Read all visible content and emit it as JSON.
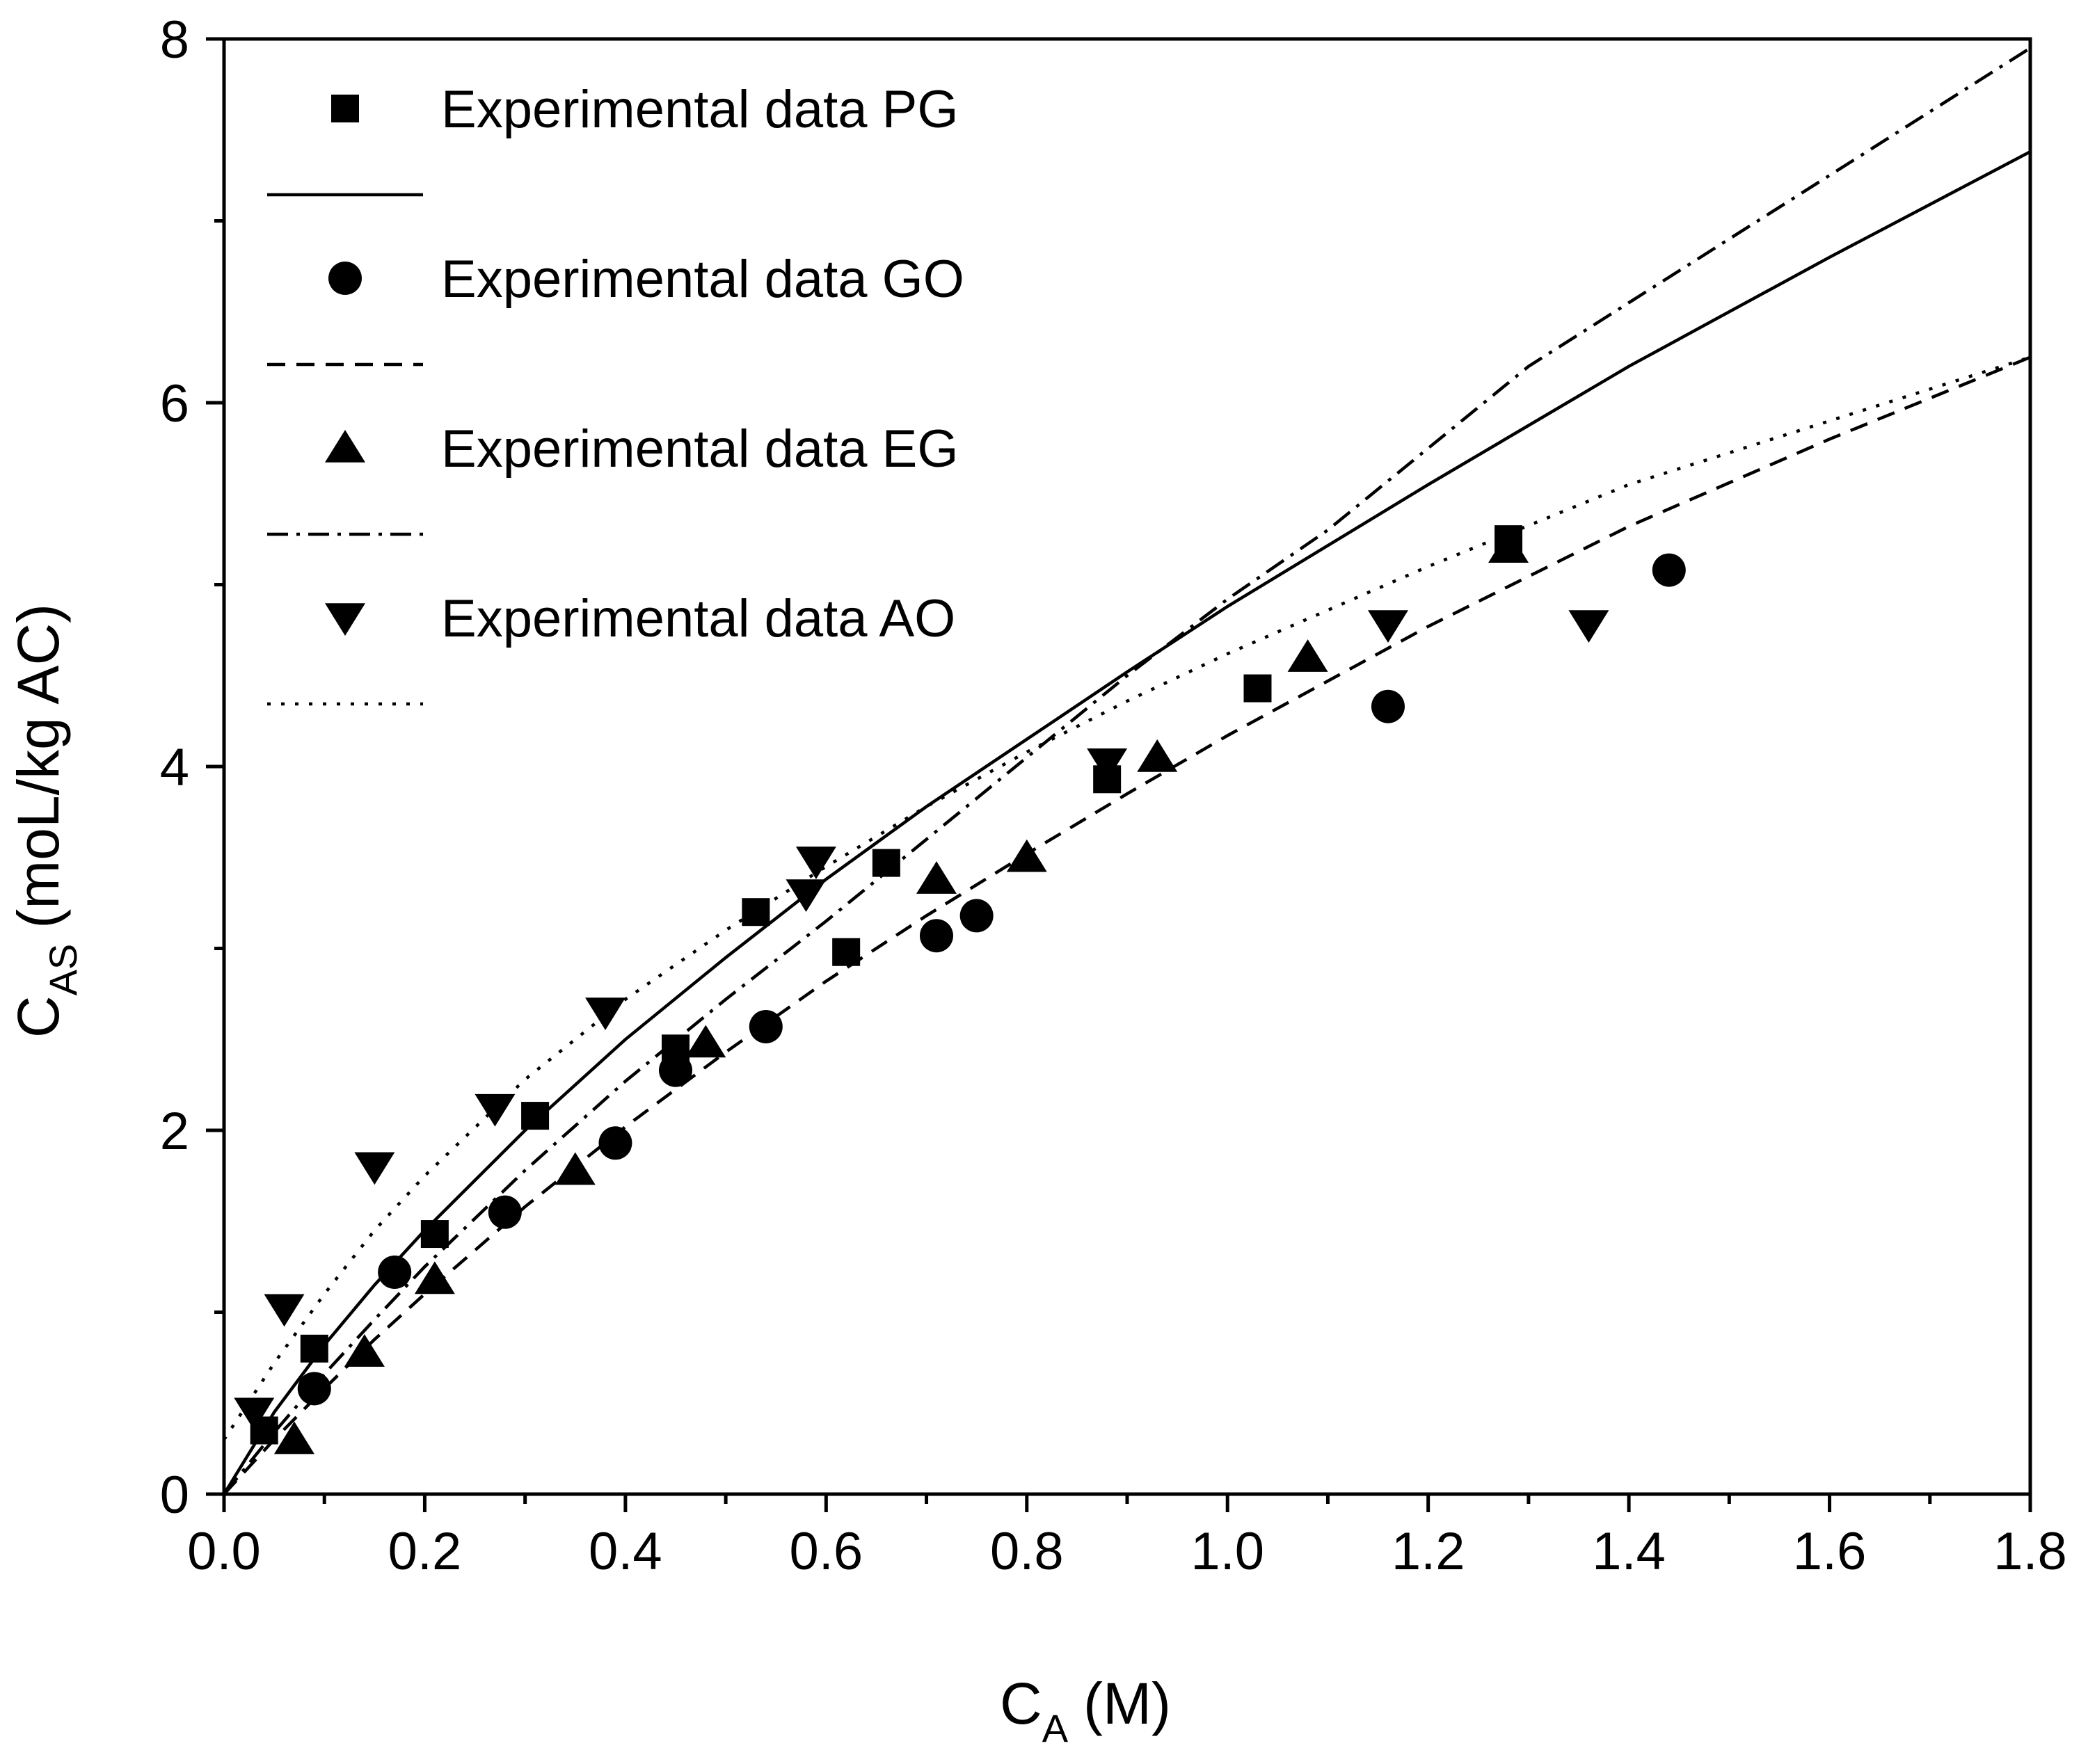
{
  "chart_data": {
    "type": "scatter",
    "title": "",
    "xlabel": {
      "main": "C",
      "sub": "A",
      "unit": "(M)"
    },
    "ylabel": {
      "main": "C",
      "sub": "AS",
      "unit": "(moL/kg AC)"
    },
    "xlim": [
      0.0,
      1.8
    ],
    "ylim": [
      0,
      8
    ],
    "xticks": [
      0.0,
      0.2,
      0.4,
      0.6,
      0.8,
      1.0,
      1.2,
      1.4,
      1.6,
      1.8
    ],
    "xtick_labels": [
      "0.0",
      "0.2",
      "0.4",
      "0.6",
      "0.8",
      "1.0",
      "1.2",
      "1.4",
      "1.6",
      "1.8"
    ],
    "yticks": [
      0,
      2,
      4,
      6,
      8
    ],
    "ytick_labels": [
      "0",
      "2",
      "4",
      "6",
      "8"
    ],
    "grid": false,
    "legend_position": "top-left",
    "series": [
      {
        "name": "Experimental data PG",
        "marker": "square",
        "line_style": "solid",
        "points": [
          [
            0.04,
            0.35
          ],
          [
            0.09,
            0.8
          ],
          [
            0.21,
            1.43
          ],
          [
            0.31,
            2.08
          ],
          [
            0.45,
            2.45
          ],
          [
            0.53,
            3.2
          ],
          [
            0.62,
            2.98
          ],
          [
            0.66,
            3.47
          ],
          [
            0.88,
            3.93
          ],
          [
            1.03,
            4.43
          ],
          [
            1.28,
            5.25
          ]
        ],
        "fit_points": [
          [
            0.0,
            0.0
          ],
          [
            0.05,
            0.45
          ],
          [
            0.1,
            0.82
          ],
          [
            0.15,
            1.15
          ],
          [
            0.2,
            1.45
          ],
          [
            0.3,
            2.0
          ],
          [
            0.4,
            2.5
          ],
          [
            0.5,
            2.95
          ],
          [
            0.6,
            3.38
          ],
          [
            0.7,
            3.78
          ],
          [
            0.8,
            4.15
          ],
          [
            0.9,
            4.52
          ],
          [
            1.0,
            4.88
          ],
          [
            1.2,
            5.55
          ],
          [
            1.4,
            6.2
          ],
          [
            1.6,
            6.8
          ],
          [
            1.8,
            7.38
          ]
        ]
      },
      {
        "name": "Experimental data GO",
        "marker": "circle",
        "line_style": "dashed",
        "points": [
          [
            0.09,
            0.58
          ],
          [
            0.17,
            1.22
          ],
          [
            0.28,
            1.55
          ],
          [
            0.39,
            1.93
          ],
          [
            0.45,
            2.33
          ],
          [
            0.54,
            2.57
          ],
          [
            0.71,
            3.07
          ],
          [
            0.75,
            3.18
          ],
          [
            1.16,
            4.33
          ],
          [
            1.44,
            5.08
          ]
        ],
        "fit_points": [
          [
            0.0,
            0.0
          ],
          [
            0.05,
            0.3
          ],
          [
            0.1,
            0.58
          ],
          [
            0.15,
            0.85
          ],
          [
            0.2,
            1.1
          ],
          [
            0.3,
            1.58
          ],
          [
            0.4,
            2.02
          ],
          [
            0.5,
            2.43
          ],
          [
            0.6,
            2.82
          ],
          [
            0.7,
            3.18
          ],
          [
            0.8,
            3.52
          ],
          [
            0.9,
            3.85
          ],
          [
            1.0,
            4.17
          ],
          [
            1.2,
            4.77
          ],
          [
            1.4,
            5.32
          ],
          [
            1.6,
            5.8
          ],
          [
            1.8,
            6.25
          ]
        ]
      },
      {
        "name": "Experimental data EG",
        "marker": "triangle-up",
        "line_style": "dash-dot",
        "points": [
          [
            0.07,
            0.3
          ],
          [
            0.14,
            0.78
          ],
          [
            0.21,
            1.18
          ],
          [
            0.35,
            1.78
          ],
          [
            0.48,
            2.48
          ],
          [
            0.71,
            3.38
          ],
          [
            0.8,
            3.5
          ],
          [
            0.93,
            4.05
          ],
          [
            1.08,
            4.6
          ],
          [
            1.28,
            5.2
          ]
        ],
        "fit_points": [
          [
            0.0,
            0.0
          ],
          [
            0.05,
            0.34
          ],
          [
            0.1,
            0.66
          ],
          [
            0.15,
            0.96
          ],
          [
            0.2,
            1.25
          ],
          [
            0.3,
            1.78
          ],
          [
            0.4,
            2.27
          ],
          [
            0.5,
            2.72
          ],
          [
            0.6,
            3.15
          ],
          [
            0.7,
            3.6
          ],
          [
            0.8,
            4.05
          ],
          [
            0.9,
            4.5
          ],
          [
            1.0,
            4.92
          ],
          [
            1.1,
            5.3
          ],
          [
            1.2,
            5.75
          ],
          [
            1.3,
            6.2
          ],
          [
            1.4,
            6.55
          ],
          [
            1.5,
            6.9
          ],
          [
            1.6,
            7.25
          ],
          [
            1.7,
            7.6
          ],
          [
            1.8,
            7.95
          ]
        ]
      },
      {
        "name": "Experimental data AO",
        "marker": "triangle-down",
        "line_style": "dotted",
        "points": [
          [
            0.03,
            0.45
          ],
          [
            0.06,
            1.02
          ],
          [
            0.15,
            1.8
          ],
          [
            0.27,
            2.12
          ],
          [
            0.38,
            2.65
          ],
          [
            0.58,
            3.3
          ],
          [
            0.59,
            3.48
          ],
          [
            0.88,
            4.02
          ],
          [
            1.16,
            4.78
          ],
          [
            1.36,
            4.78
          ]
        ],
        "fit_points": [
          [
            0.0,
            0.3
          ],
          [
            0.05,
            0.72
          ],
          [
            0.1,
            1.1
          ],
          [
            0.15,
            1.45
          ],
          [
            0.2,
            1.75
          ],
          [
            0.3,
            2.28
          ],
          [
            0.4,
            2.72
          ],
          [
            0.5,
            3.1
          ],
          [
            0.6,
            3.45
          ],
          [
            0.7,
            3.78
          ],
          [
            0.8,
            4.08
          ],
          [
            0.9,
            4.36
          ],
          [
            1.0,
            4.62
          ],
          [
            1.2,
            5.1
          ],
          [
            1.4,
            5.55
          ],
          [
            1.6,
            5.9
          ],
          [
            1.8,
            6.25
          ]
        ]
      }
    ]
  }
}
